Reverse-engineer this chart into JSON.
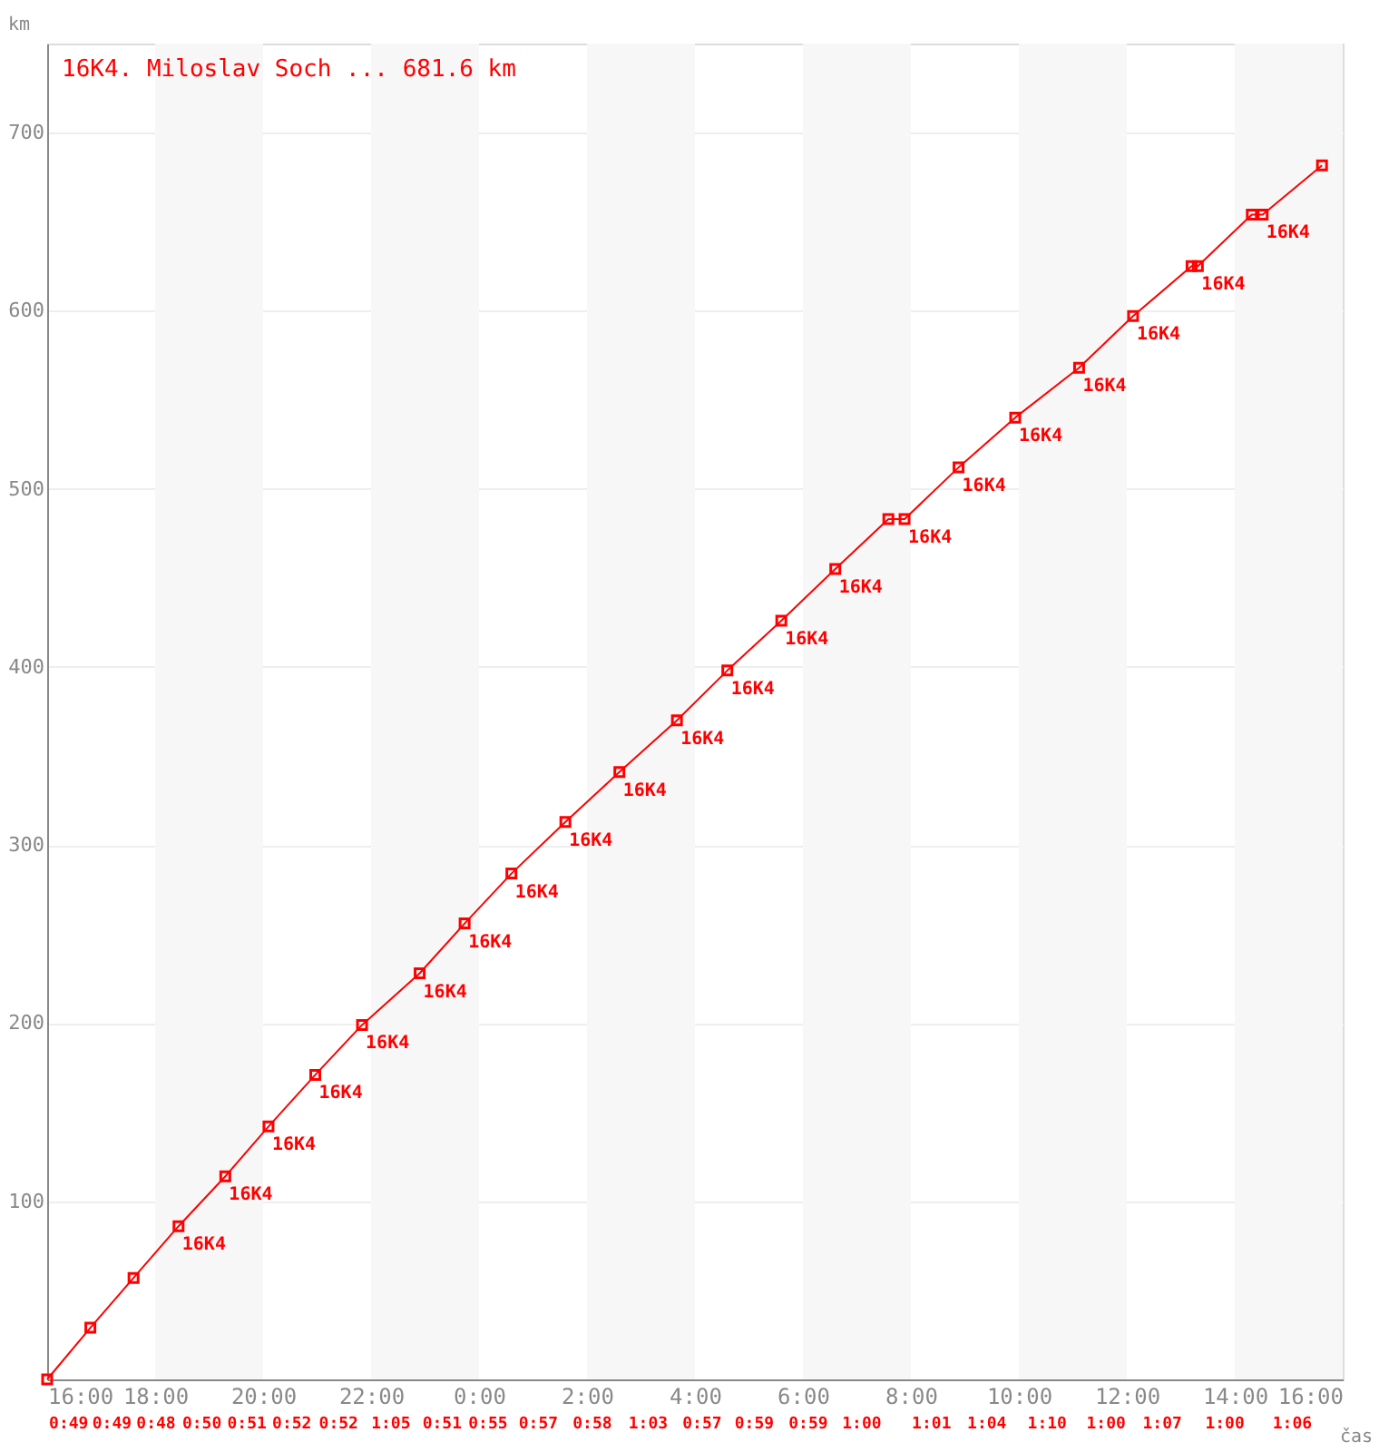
{
  "chart_data": {
    "type": "line",
    "x": [
      "2000-01-01T16:00",
      "2000-01-01T16:48",
      "2000-01-01T17:36",
      "2000-01-01T18:26",
      "2000-01-01T19:18",
      "2000-01-01T20:06",
      "2000-01-01T20:58",
      "2000-01-01T21:50",
      "2000-01-01T22:54",
      "2000-01-01T23:44",
      "2000-01-02T00:36",
      "2000-01-02T01:36",
      "2000-01-02T02:36",
      "2000-01-02T03:40",
      "2000-01-02T04:36",
      "2000-01-02T05:36",
      "2000-01-02T06:36",
      "2000-01-02T07:35",
      "2000-01-02T07:53",
      "2000-01-02T08:53",
      "2000-01-02T09:56",
      "2000-01-02T11:07",
      "2000-01-02T12:07",
      "2000-01-02T13:12",
      "2000-01-02T13:19",
      "2000-01-02T14:19",
      "2000-01-02T14:31",
      "2000-01-02T15:37"
    ],
    "series": [
      {
        "name": "16K4. Miloslav Soch ... 681.6 km",
        "color": "#ff0000",
        "values": [
          0,
          29,
          57,
          86,
          114,
          142,
          171,
          199,
          228,
          256,
          284,
          313,
          341,
          370,
          398,
          426,
          455,
          483,
          483,
          512,
          540,
          568,
          597,
          625,
          625,
          654,
          654,
          681.6
        ]
      }
    ],
    "xlabel": "čas",
    "ylabel": "km",
    "xlim": [
      "2000-01-01T16:00",
      "2000-01-02T16:00"
    ],
    "ylim": [
      0,
      750
    ],
    "xticks": [
      {
        "value": "2000-01-01T16:00",
        "label": "16:00"
      },
      {
        "value": "2000-01-01T18:00",
        "label": "18:00"
      },
      {
        "value": "2000-01-01T20:00",
        "label": "20:00"
      },
      {
        "value": "2000-01-01T22:00",
        "label": "22:00"
      },
      {
        "value": "2000-01-02T00:00",
        "label": "0:00"
      },
      {
        "value": "2000-01-02T02:00",
        "label": "2:00"
      },
      {
        "value": "2000-01-02T04:00",
        "label": "4:00"
      },
      {
        "value": "2000-01-02T06:00",
        "label": "6:00"
      },
      {
        "value": "2000-01-02T08:00",
        "label": "8:00"
      },
      {
        "value": "2000-01-02T10:00",
        "label": "10:00"
      },
      {
        "value": "2000-01-02T12:00",
        "label": "12:00"
      },
      {
        "value": "2000-01-02T14:00",
        "label": "14:00"
      },
      {
        "value": "2000-01-02T16:00",
        "label": "16:00"
      }
    ],
    "yticks": [
      100,
      200,
      300,
      400,
      500,
      600,
      700
    ],
    "grid": "y",
    "marker": "square",
    "line_style": "solid",
    "legend": "top left",
    "bands": [
      {
        "axis": "x",
        "from": "2000-01-01T18:00",
        "to": "2000-01-01T20:00",
        "color": "#f7f7f7"
      },
      {
        "axis": "x",
        "from": "2000-01-01T22:00",
        "to": "2000-01-02T00:00",
        "color": "#f7f7f7"
      },
      {
        "axis": "x",
        "from": "2000-01-02T02:00",
        "to": "2000-01-02T04:00",
        "color": "#f7f7f7"
      },
      {
        "axis": "x",
        "from": "2000-01-02T06:00",
        "to": "2000-01-02T08:00",
        "color": "#f7f7f7"
      },
      {
        "axis": "x",
        "from": "2000-01-02T10:00",
        "to": "2000-01-02T12:00",
        "color": "#f7f7f7"
      },
      {
        "axis": "x",
        "from": "2000-01-02T14:00",
        "to": "2000-01-02T16:00",
        "color": "#f7f7f7"
      }
    ],
    "annotations": [
      {
        "text": "16K4",
        "x": "2000-01-01T18:26",
        "y": 86
      },
      {
        "text": "16K4",
        "x": "2000-01-01T19:18",
        "y": 114
      },
      {
        "text": "16K4",
        "x": "2000-01-01T20:06",
        "y": 142
      },
      {
        "text": "16K4",
        "x": "2000-01-01T20:58",
        "y": 171
      },
      {
        "text": "16K4",
        "x": "2000-01-01T21:50",
        "y": 199
      },
      {
        "text": "16K4",
        "x": "2000-01-01T22:54",
        "y": 228
      },
      {
        "text": "16K4",
        "x": "2000-01-01T23:44",
        "y": 256
      },
      {
        "text": "16K4",
        "x": "2000-01-02T00:36",
        "y": 284
      },
      {
        "text": "16K4",
        "x": "2000-01-02T01:36",
        "y": 313
      },
      {
        "text": "16K4",
        "x": "2000-01-02T02:36",
        "y": 341
      },
      {
        "text": "16K4",
        "x": "2000-01-02T03:40",
        "y": 370
      },
      {
        "text": "16K4",
        "x": "2000-01-02T04:36",
        "y": 398
      },
      {
        "text": "16K4",
        "x": "2000-01-02T05:36",
        "y": 426
      },
      {
        "text": "16K4",
        "x": "2000-01-02T06:36",
        "y": 455
      },
      {
        "text": "16K4",
        "x": "2000-01-02T07:53",
        "y": 483
      },
      {
        "text": "16K4",
        "x": "2000-01-02T08:53",
        "y": 512
      },
      {
        "text": "16K4",
        "x": "2000-01-02T09:56",
        "y": 540
      },
      {
        "text": "16K4",
        "x": "2000-01-02T11:07",
        "y": 568
      },
      {
        "text": "16K4",
        "x": "2000-01-02T12:07",
        "y": 597
      },
      {
        "text": "16K4",
        "x": "2000-01-02T13:19",
        "y": 625
      },
      {
        "text": "16K4",
        "x": "2000-01-02T14:31",
        "y": 654
      },
      "0:49",
      "0:49",
      "0:48",
      "0:50",
      "0:51",
      "0:52",
      "0:52",
      "1:05",
      "0:51",
      "0:55",
      "0:57",
      "0:58",
      "1:03",
      "0:57",
      "0:59",
      "0:59",
      "1:00",
      "1:01",
      "1:04",
      "1:10",
      "1:00",
      "1:07",
      "1:00",
      "1:06"
    ]
  }
}
